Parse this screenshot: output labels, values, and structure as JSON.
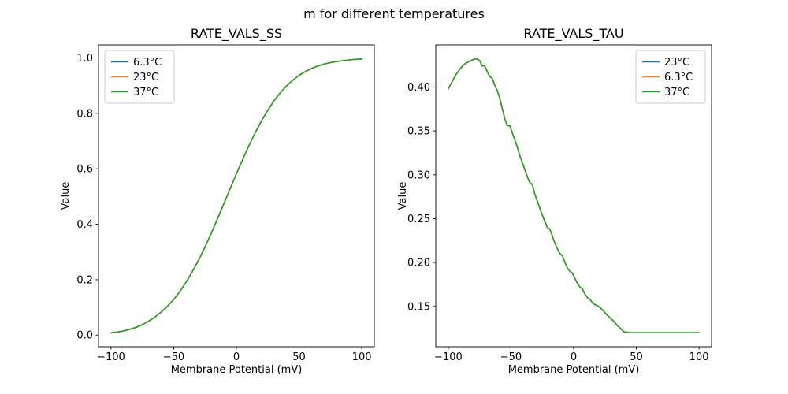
{
  "title": "m for different temperatures",
  "chart_data": [
    {
      "type": "line",
      "title": "RATE_VALS_SS",
      "xlabel": "Membrane Potential (mV)",
      "ylabel": "Value",
      "xlim": [
        -110,
        110
      ],
      "ylim": [
        -0.042,
        1.047
      ],
      "xticks": [
        -100,
        -50,
        0,
        50,
        100
      ],
      "xtick_labels": [
        "−100",
        "−50",
        "0",
        "50",
        "100"
      ],
      "yticks": [
        0.0,
        0.2,
        0.4,
        0.6,
        0.8,
        1.0
      ],
      "ytick_labels": [
        "0.0",
        "0.2",
        "0.4",
        "0.6",
        "0.8",
        "1.0"
      ],
      "legend": {
        "position": "upper-left"
      },
      "note": "All three temperature curves overlap exactly; only the last-drawn (37°C, green) is visible.",
      "x": [
        -100,
        -95,
        -90,
        -85,
        -80,
        -75,
        -70,
        -65,
        -60,
        -55,
        -50,
        -45,
        -40,
        -35,
        -30,
        -25,
        -20,
        -15,
        -10,
        -5,
        0,
        5,
        10,
        15,
        20,
        25,
        30,
        35,
        40,
        45,
        50,
        55,
        60,
        65,
        70,
        75,
        80,
        85,
        90,
        95,
        100
      ],
      "y_shared": [
        0.008,
        0.011,
        0.015,
        0.021,
        0.028,
        0.038,
        0.05,
        0.065,
        0.083,
        0.104,
        0.129,
        0.158,
        0.192,
        0.23,
        0.272,
        0.318,
        0.368,
        0.42,
        0.474,
        0.528,
        0.582,
        0.634,
        0.684,
        0.73,
        0.773,
        0.811,
        0.845,
        0.874,
        0.899,
        0.92,
        0.937,
        0.951,
        0.962,
        0.971,
        0.978,
        0.983,
        0.987,
        0.99,
        0.993,
        0.995,
        0.996
      ],
      "series": [
        {
          "name": "6.3°C",
          "color": "#1f77b4"
        },
        {
          "name": "23°C",
          "color": "#ff7f0e"
        },
        {
          "name": "37°C",
          "color": "#2ca02c"
        }
      ]
    },
    {
      "type": "line",
      "title": "RATE_VALS_TAU",
      "xlabel": "Membrane Potential (mV)",
      "ylabel": "Value",
      "xlim": [
        -110,
        110
      ],
      "ylim": [
        0.104,
        0.448
      ],
      "xticks": [
        -100,
        -50,
        0,
        50,
        100
      ],
      "xtick_labels": [
        "−100",
        "−50",
        "0",
        "50",
        "100"
      ],
      "yticks": [
        0.15,
        0.2,
        0.25,
        0.3,
        0.35,
        0.4
      ],
      "ytick_labels": [
        "0.15",
        "0.20",
        "0.25",
        "0.30",
        "0.35",
        "0.40"
      ],
      "legend": {
        "position": "upper-right"
      },
      "note": "All three temperature curves overlap exactly; only the last-drawn (37°C, green) is visible.",
      "x": [
        -100,
        -97,
        -94,
        -91,
        -88,
        -85,
        -82,
        -79,
        -77,
        -75,
        -73,
        -71,
        -69,
        -67,
        -65,
        -63,
        -61,
        -59,
        -57,
        -55,
        -53,
        -51,
        -49,
        -47,
        -45,
        -43,
        -41,
        -39,
        -37,
        -35,
        -33,
        -31,
        -29,
        -27,
        -25,
        -23,
        -21,
        -19,
        -17,
        -15,
        -13,
        -11,
        -9,
        -7,
        -5,
        -3,
        -1,
        1,
        3,
        5,
        7,
        9,
        11,
        13,
        15,
        17,
        20,
        23,
        26,
        29,
        32,
        35,
        38,
        40,
        45,
        50,
        60,
        70,
        80,
        90,
        100
      ],
      "y_shared": [
        0.398,
        0.406,
        0.414,
        0.42,
        0.425,
        0.428,
        0.43,
        0.432,
        0.432,
        0.43,
        0.424,
        0.424,
        0.418,
        0.412,
        0.41,
        0.402,
        0.396,
        0.388,
        0.376,
        0.364,
        0.356,
        0.356,
        0.348,
        0.34,
        0.332,
        0.322,
        0.314,
        0.306,
        0.298,
        0.291,
        0.289,
        0.278,
        0.27,
        0.262,
        0.254,
        0.247,
        0.24,
        0.238,
        0.23,
        0.222,
        0.216,
        0.21,
        0.208,
        0.2,
        0.194,
        0.19,
        0.188,
        0.182,
        0.176,
        0.172,
        0.17,
        0.164,
        0.16,
        0.158,
        0.154,
        0.152,
        0.15,
        0.146,
        0.141,
        0.137,
        0.133,
        0.128,
        0.124,
        0.121,
        0.12,
        0.12,
        0.12,
        0.12,
        0.12,
        0.12,
        0.12
      ],
      "series": [
        {
          "name": "23°C",
          "color": "#1f77b4"
        },
        {
          "name": "6.3°C",
          "color": "#ff7f0e"
        },
        {
          "name": "37°C",
          "color": "#2ca02c"
        }
      ]
    }
  ]
}
